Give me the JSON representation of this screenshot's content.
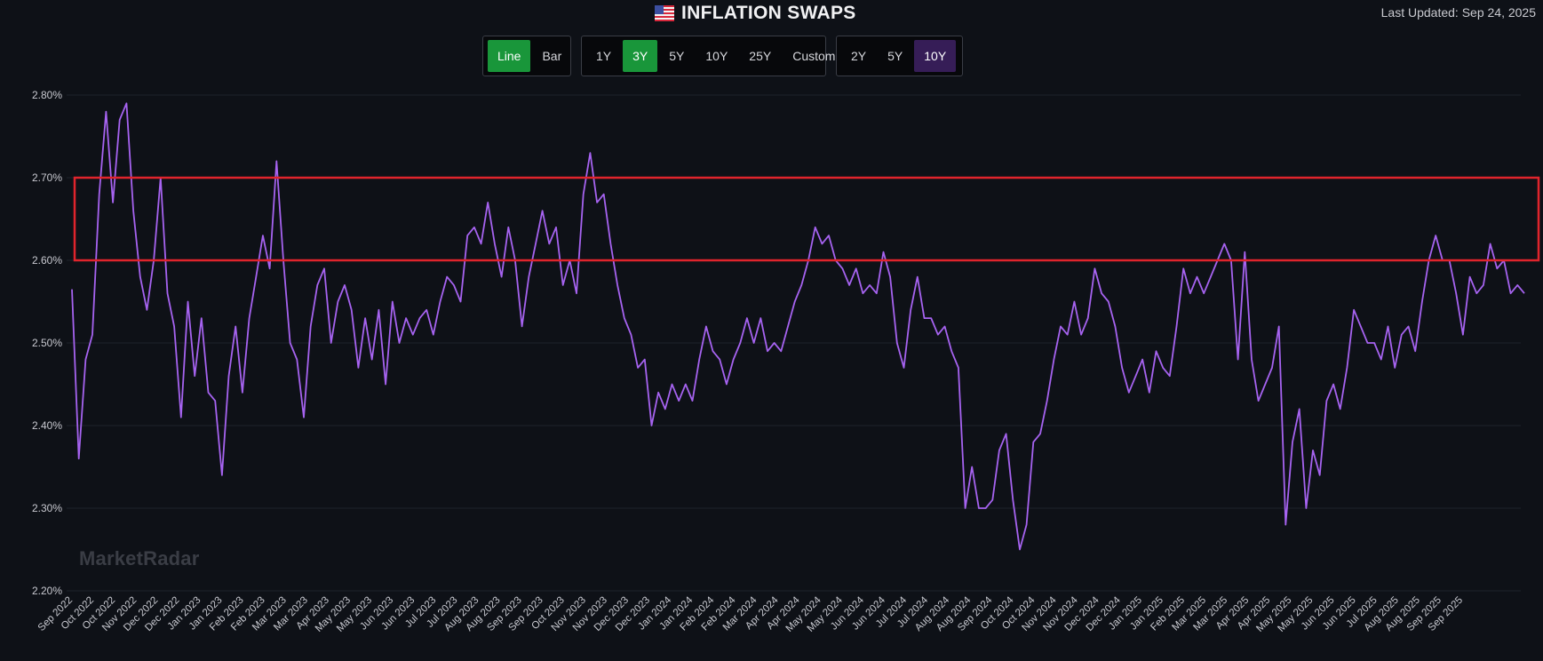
{
  "header": {
    "title": "INFLATION SWAPS",
    "flag_icon": "us-flag-icon",
    "last_updated": "Last Updated: Sep 24, 2025"
  },
  "controls": {
    "chart_type": [
      {
        "label": "Line",
        "active": true
      },
      {
        "label": "Bar",
        "active": false
      }
    ],
    "range": [
      {
        "label": "1Y",
        "active": false
      },
      {
        "label": "3Y",
        "active": true
      },
      {
        "label": "5Y",
        "active": false
      },
      {
        "label": "10Y",
        "active": false
      },
      {
        "label": "25Y",
        "active": false
      },
      {
        "label": "Custom",
        "active": false
      }
    ],
    "tenor": [
      {
        "label": "2Y",
        "active": false
      },
      {
        "label": "5Y",
        "active": false
      },
      {
        "label": "10Y",
        "active": true
      }
    ]
  },
  "watermark": "MarketRadar",
  "colors": {
    "line": "#a663f0",
    "highlight": "#e0242c",
    "active_green": "#19963a",
    "active_purple": "#361d57",
    "background": "#0e1117"
  },
  "chart_data": {
    "type": "line",
    "title": "INFLATION SWAPS",
    "series_name": "10Y",
    "ylim": [
      2.2,
      2.8
    ],
    "yticks": [
      "2.80%",
      "2.70%",
      "2.60%",
      "2.50%",
      "2.40%",
      "2.30%",
      "2.20%"
    ],
    "ytick_values": [
      2.8,
      2.7,
      2.6,
      2.5,
      2.4,
      2.3,
      2.2
    ],
    "grid": true,
    "highlight_band": {
      "from": 2.6,
      "to": 2.7
    },
    "xticks": [
      "Sep 2022",
      "Oct 2022",
      "Oct 2022",
      "Nov 2022",
      "Dec 2022",
      "Dec 2022",
      "Jan 2023",
      "Jan 2023",
      "Feb 2023",
      "Feb 2023",
      "Mar 2023",
      "Mar 2023",
      "Apr 2023",
      "May 2023",
      "May 2023",
      "Jun 2023",
      "Jun 2023",
      "Jul 2023",
      "Jul 2023",
      "Aug 2023",
      "Aug 2023",
      "Sep 2023",
      "Sep 2023",
      "Oct 2023",
      "Nov 2023",
      "Nov 2023",
      "Dec 2023",
      "Dec 2023",
      "Jan 2024",
      "Jan 2024",
      "Feb 2024",
      "Feb 2024",
      "Mar 2024",
      "Apr 2024",
      "Apr 2024",
      "May 2024",
      "May 2024",
      "Jun 2024",
      "Jun 2024",
      "Jul 2024",
      "Jul 2024",
      "Aug 2024",
      "Aug 2024",
      "Sep 2024",
      "Oct 2024",
      "Oct 2024",
      "Nov 2024",
      "Nov 2024",
      "Dec 2024",
      "Dec 2024",
      "Jan 2025",
      "Jan 2025",
      "Feb 2025",
      "Mar 2025",
      "Mar 2025",
      "Apr 2025",
      "Apr 2025",
      "May 2025",
      "May 2025",
      "Jun 2025",
      "Jun 2025",
      "Jul 2025",
      "Aug 2025",
      "Aug 2025",
      "Sep 2025",
      "Sep 2025"
    ],
    "values": [
      2.565,
      2.36,
      2.48,
      2.51,
      2.68,
      2.78,
      2.67,
      2.77,
      2.79,
      2.66,
      2.58,
      2.54,
      2.6,
      2.7,
      2.56,
      2.52,
      2.41,
      2.55,
      2.46,
      2.53,
      2.44,
      2.43,
      2.34,
      2.46,
      2.52,
      2.44,
      2.53,
      2.58,
      2.63,
      2.59,
      2.72,
      2.6,
      2.5,
      2.48,
      2.41,
      2.52,
      2.57,
      2.59,
      2.5,
      2.55,
      2.57,
      2.54,
      2.47,
      2.53,
      2.48,
      2.54,
      2.45,
      2.55,
      2.5,
      2.53,
      2.51,
      2.53,
      2.54,
      2.51,
      2.55,
      2.58,
      2.57,
      2.55,
      2.63,
      2.64,
      2.62,
      2.67,
      2.62,
      2.58,
      2.64,
      2.6,
      2.52,
      2.58,
      2.62,
      2.66,
      2.62,
      2.64,
      2.57,
      2.6,
      2.56,
      2.68,
      2.73,
      2.67,
      2.68,
      2.62,
      2.57,
      2.53,
      2.51,
      2.47,
      2.48,
      2.4,
      2.44,
      2.42,
      2.45,
      2.43,
      2.45,
      2.43,
      2.48,
      2.52,
      2.49,
      2.48,
      2.45,
      2.48,
      2.5,
      2.53,
      2.5,
      2.53,
      2.49,
      2.5,
      2.49,
      2.52,
      2.55,
      2.57,
      2.6,
      2.64,
      2.62,
      2.63,
      2.6,
      2.59,
      2.57,
      2.59,
      2.56,
      2.57,
      2.56,
      2.61,
      2.58,
      2.5,
      2.47,
      2.54,
      2.58,
      2.53,
      2.53,
      2.51,
      2.52,
      2.49,
      2.47,
      2.3,
      2.35,
      2.3,
      2.3,
      2.31,
      2.37,
      2.39,
      2.31,
      2.25,
      2.28,
      2.38,
      2.39,
      2.43,
      2.48,
      2.52,
      2.51,
      2.55,
      2.51,
      2.53,
      2.59,
      2.56,
      2.55,
      2.52,
      2.47,
      2.44,
      2.46,
      2.48,
      2.44,
      2.49,
      2.47,
      2.46,
      2.52,
      2.59,
      2.56,
      2.58,
      2.56,
      2.58,
      2.6,
      2.62,
      2.6,
      2.48,
      2.61,
      2.48,
      2.43,
      2.45,
      2.47,
      2.52,
      2.28,
      2.38,
      2.42,
      2.3,
      2.37,
      2.34,
      2.43,
      2.45,
      2.42,
      2.47,
      2.54,
      2.52,
      2.5,
      2.5,
      2.48,
      2.52,
      2.47,
      2.51,
      2.52,
      2.49,
      2.55,
      2.6,
      2.63,
      2.6,
      2.6,
      2.56,
      2.51,
      2.58,
      2.56,
      2.57,
      2.62,
      2.59,
      2.6,
      2.56,
      2.57,
      2.56
    ]
  }
}
